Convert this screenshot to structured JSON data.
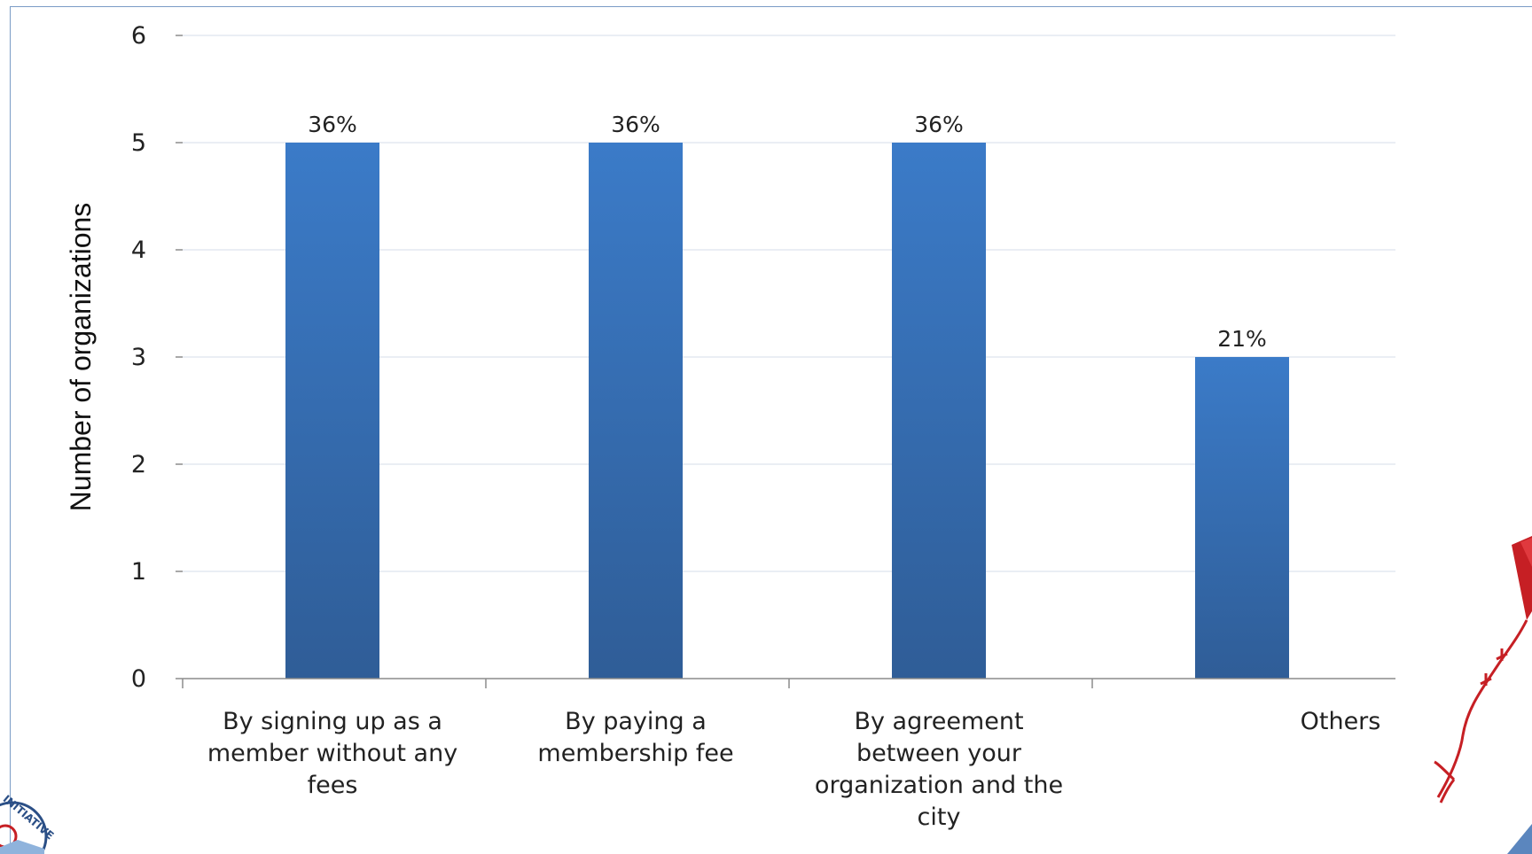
{
  "chart_data": {
    "type": "bar",
    "title": "",
    "xlabel": "",
    "ylabel": "Number of organizations",
    "ylim": [
      0,
      6
    ],
    "yticks": [
      0,
      1,
      2,
      3,
      4,
      5,
      6
    ],
    "grid": true,
    "legend": "none",
    "categories": [
      "By signing up as a member without any fees",
      "By paying a membership fee",
      "By agreement between your organization and the city",
      "Others"
    ],
    "category_lines": [
      [
        "By signing up as a",
        "member without any",
        "fees"
      ],
      [
        "By paying a",
        "membership fee"
      ],
      [
        "By agreement",
        "between your",
        "organization and the",
        "city"
      ],
      [
        "Others"
      ]
    ],
    "values": [
      5,
      5,
      5,
      3
    ],
    "data_labels": [
      "36%",
      "36%",
      "36%",
      "21%"
    ],
    "bar_color_top": "#3b7bc8",
    "bar_color_bottom": "#2f5d97",
    "grid_color": "#e4e9f1",
    "axis_color": "#8c8c8c"
  },
  "logo": {
    "text": "INITIATIVE"
  }
}
